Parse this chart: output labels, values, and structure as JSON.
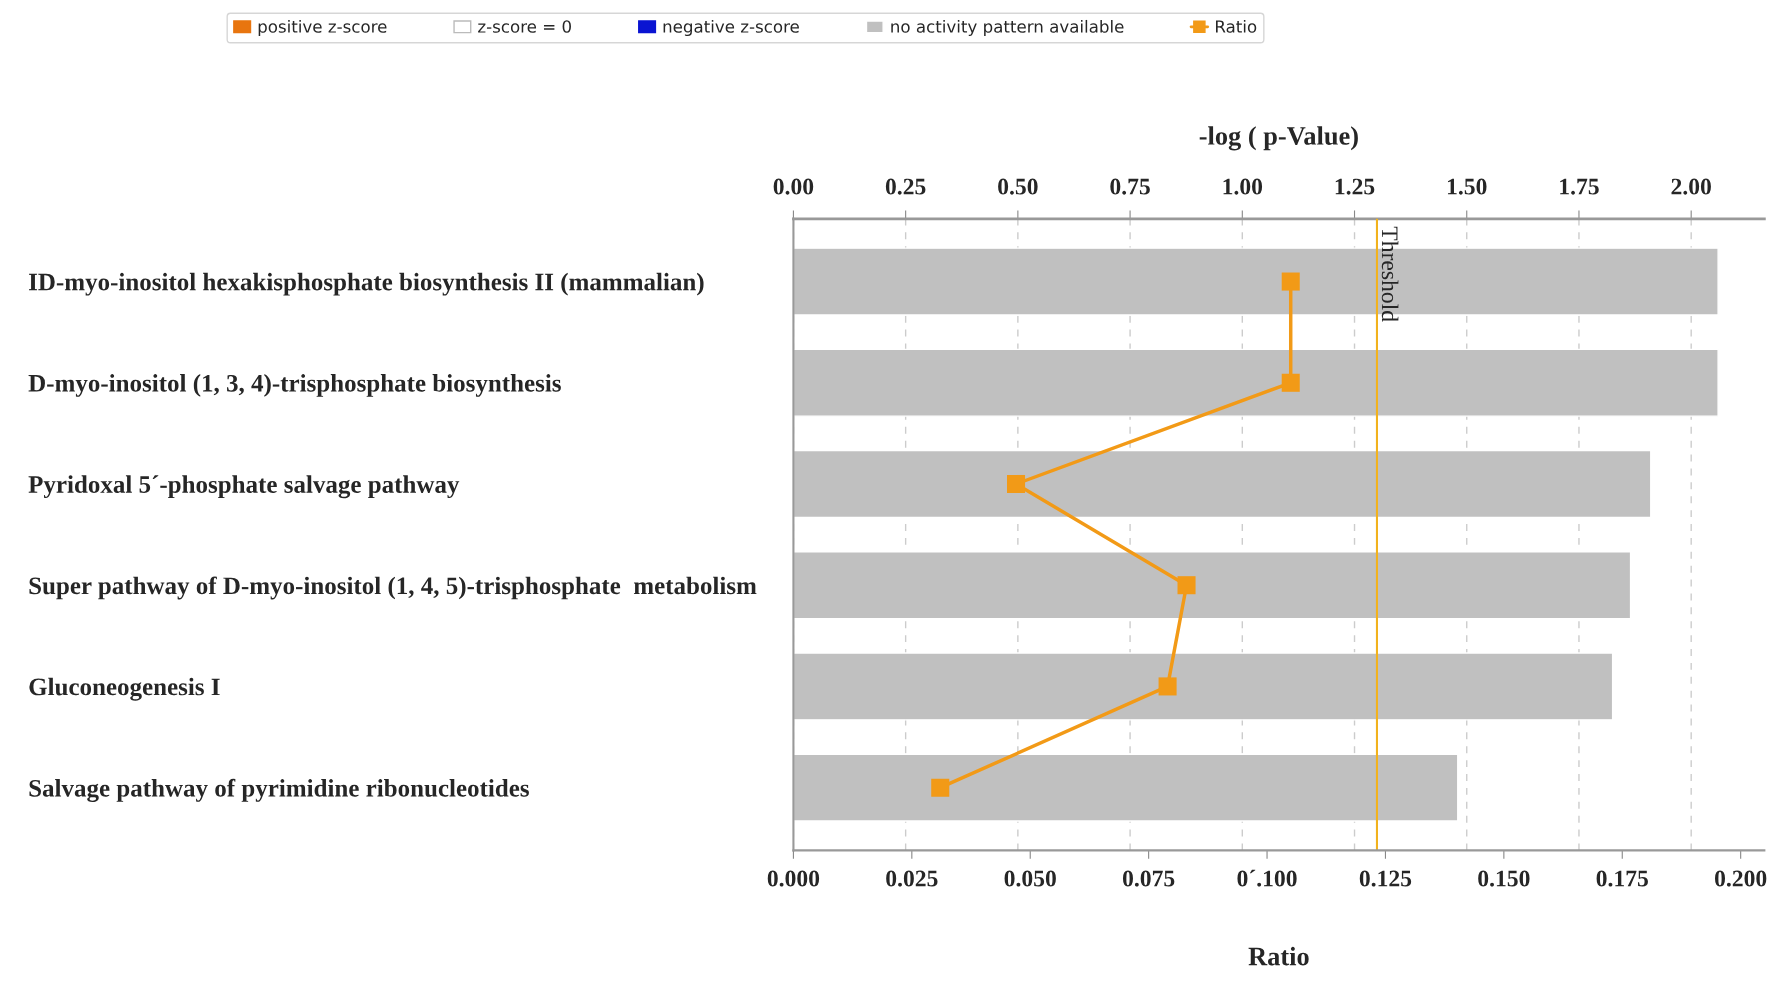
{
  "chart_data": {
    "type": "bar",
    "orientation": "horizontal",
    "categories": [
      "ID-myo-inositol hexakisphosphate biosynthesis II (mammalian)",
      "D-myo-inositol (1, 3, 4)-trisphosphate biosynthesis",
      "Pyridoxal 5´-phosphate salvage pathway",
      "Super pathway of D-myo-inositol (1, 4, 5)-trisphosphate  metabolism",
      "Gluconeogenesis I",
      "Salvage pathway of pyrimidine ribonucleotides"
    ],
    "series": [
      {
        "name": "positive z-score",
        "type": "bar",
        "axis": "x2",
        "color": "#e8750f",
        "values": [
          null,
          null,
          null,
          null,
          null,
          null
        ]
      },
      {
        "name": "z-score = 0",
        "type": "bar",
        "axis": "x2",
        "color": "#ffffff",
        "values": [
          null,
          null,
          null,
          null,
          null,
          null
        ]
      },
      {
        "name": "negative z-score",
        "type": "bar",
        "axis": "x2",
        "color": "#0a14d2",
        "values": [
          null,
          null,
          null,
          null,
          null,
          null
        ]
      },
      {
        "name": "no activity pattern available",
        "type": "bar",
        "axis": "x2",
        "color": "#c0c0c0",
        "values": [
          2.06,
          2.06,
          1.91,
          1.865,
          1.825,
          1.48
        ]
      },
      {
        "name": "Ratio",
        "type": "line",
        "color": "#f29a17",
        "values": [
          0.105,
          0.105,
          0.047,
          0.083,
          0.079,
          0.031
        ]
      }
    ],
    "xlabel": "Ratio",
    "x2label": "-log ( p-Value)",
    "xlim": [
      0,
      0.205
    ],
    "xticks": [
      {
        "value": 0,
        "label": "0.000"
      },
      {
        "value": 0.025,
        "label": "0.025"
      },
      {
        "value": 0.05,
        "label": "0.050"
      },
      {
        "value": 0.075,
        "label": "0.075"
      },
      {
        "value": 0.1,
        "label": "0´.100"
      },
      {
        "value": 0.125,
        "label": "0.125"
      },
      {
        "value": 0.15,
        "label": "0.150"
      },
      {
        "value": 0.175,
        "label": "0.175"
      },
      {
        "value": 0.2,
        "label": "0.200"
      }
    ],
    "x2lim": [
      0,
      2.163
    ],
    "x2ticks": [
      {
        "value": 0,
        "label": "0.00"
      },
      {
        "value": 0.25,
        "label": "0.25"
      },
      {
        "value": 0.5,
        "label": "0.50"
      },
      {
        "value": 0.75,
        "label": "0.75"
      },
      {
        "value": 1,
        "label": "1.00"
      },
      {
        "value": 1.25,
        "label": "1.25"
      },
      {
        "value": 1.5,
        "label": "1.50"
      },
      {
        "value": 1.75,
        "label": "1.75"
      },
      {
        "value": 2,
        "label": "2.00"
      }
    ],
    "ref_lines": [
      {
        "axis": "x2",
        "value": 1.3,
        "label": "Threshold",
        "color": "#f2b21d"
      }
    ],
    "grid": "x2",
    "legend": "top",
    "marker": "square"
  }
}
